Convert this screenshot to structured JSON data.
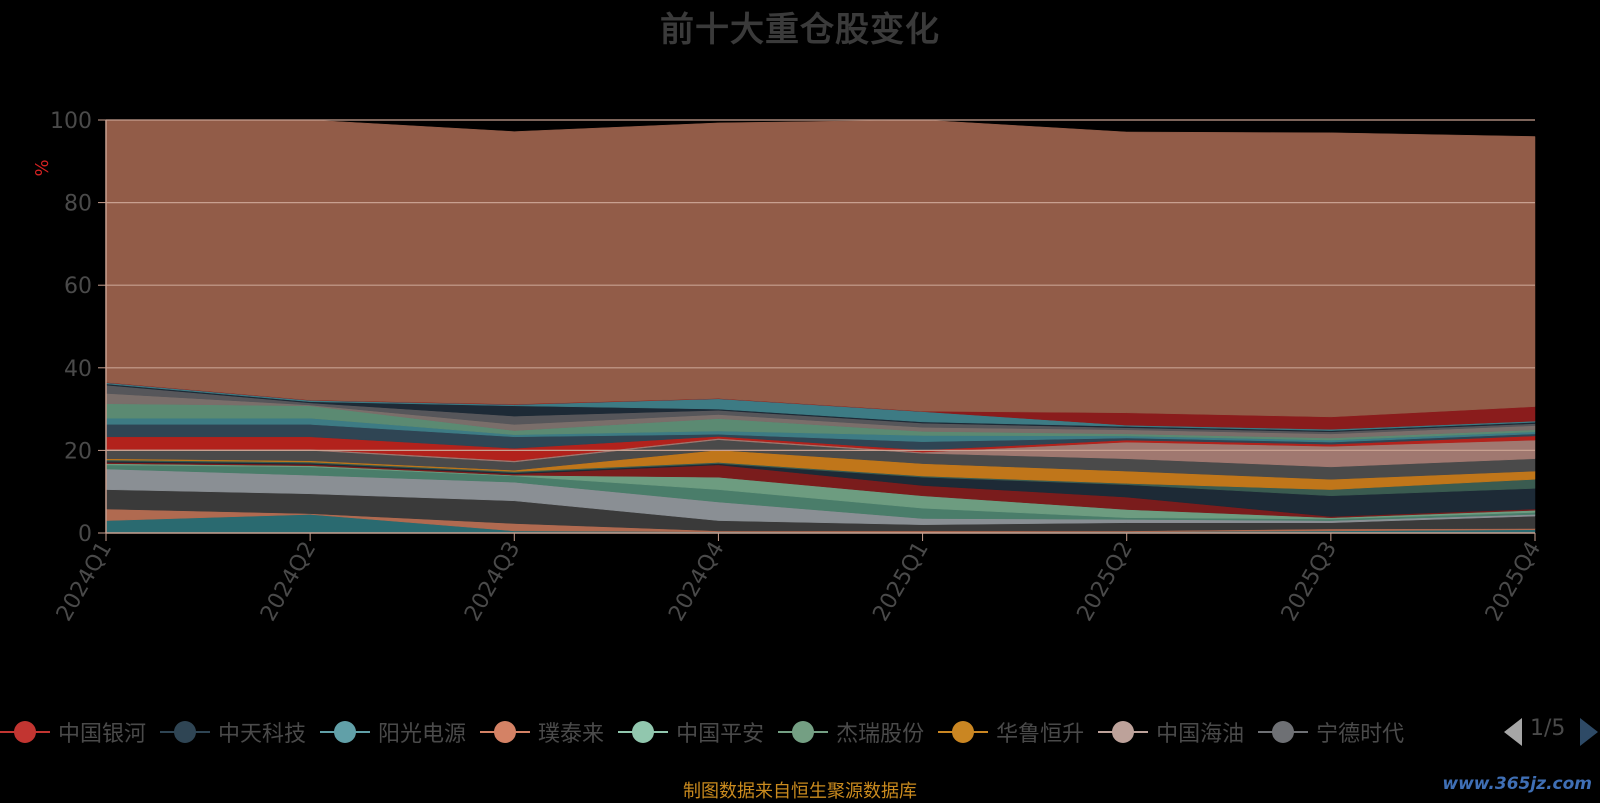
{
  "title": "前十大重仓股变化",
  "source_note": "制图数据来自恒生聚源数据库",
  "watermark": "www.365jz.com",
  "legend_page": "1/5",
  "colors": {
    "background": "#000000",
    "fill_area": "#925c48",
    "axis": "#c8a090",
    "tick_text": "#4a4a4a",
    "ylabel": "#d42222",
    "source_text": "#c98a1e"
  },
  "legend_items": [
    {
      "name": "中国银河",
      "color": "#c23531"
    },
    {
      "name": "中天科技",
      "color": "#2f4554"
    },
    {
      "name": "阳光电源",
      "color": "#61a0a8"
    },
    {
      "name": "璞泰来",
      "color": "#d48265"
    },
    {
      "name": "中国平安",
      "color": "#91c7ae"
    },
    {
      "name": "杰瑞股份",
      "color": "#749f83"
    },
    {
      "name": "华鲁恒升",
      "color": "#ca8622"
    },
    {
      "name": "中国海油",
      "color": "#bda29a"
    },
    {
      "name": "宁德时代",
      "color": "#6e7074"
    }
  ],
  "chart_data": {
    "type": "area",
    "categories": [
      "2024Q1",
      "2024Q2",
      "2024Q3",
      "2024Q4",
      "2025Q1",
      "2025Q2",
      "2025Q3",
      "2025Q4"
    ],
    "ylabel": "%",
    "ylim": [
      0,
      100
    ],
    "yticks": [
      0,
      20,
      40,
      60,
      80,
      100
    ],
    "stacked": true,
    "series": [
      {
        "color": "#2a6a70",
        "values": [
          3.0,
          4.5,
          0.5,
          0.3,
          0.2,
          0.3,
          0.5,
          0.8
        ]
      },
      {
        "color": "#b06a50",
        "values": [
          2.8,
          0.2,
          1.8,
          0.2,
          0.3,
          0.2,
          0.5,
          0.3
        ]
      },
      {
        "color": "#3a3a3a",
        "values": [
          4.7,
          4.8,
          5.5,
          2.5,
          1.5,
          2.0,
          1.5,
          3.0
        ]
      },
      {
        "color": "#8a8f94",
        "values": [
          5.0,
          4.5,
          4.5,
          4.5,
          1.5,
          0.8,
          0.5,
          0.4
        ]
      },
      {
        "color": "#4a7d6a",
        "values": [
          1.0,
          2.0,
          1.5,
          3.0,
          2.5,
          0.4,
          0.4,
          0.5
        ]
      },
      {
        "color": "#6d9c80",
        "values": [
          0.3,
          0.3,
          0.2,
          3.0,
          3.0,
          2.0,
          0.3,
          0.5
        ]
      },
      {
        "color": "#7a1c1c",
        "values": [
          0.3,
          0.3,
          0.3,
          3.0,
          2.5,
          3.0,
          0.3,
          0.3
        ]
      },
      {
        "color": "#1d2a36",
        "values": [
          0.3,
          0.3,
          0.3,
          0.3,
          2.0,
          3.0,
          5.0,
          5.0
        ]
      },
      {
        "color": "#3a5b50",
        "values": [
          0.3,
          0.3,
          0.3,
          0.3,
          0.3,
          0.3,
          1.5,
          2.2
        ]
      },
      {
        "color": "#c0761a",
        "values": [
          0.3,
          0.3,
          0.3,
          3.0,
          3.0,
          3.0,
          2.5,
          2.0
        ]
      },
      {
        "color": "#4a4a4a",
        "values": [
          2.0,
          2.5,
          2.0,
          2.5,
          2.5,
          3.0,
          3.0,
          3.0
        ]
      },
      {
        "color": "#a07870",
        "values": [
          0.3,
          0.3,
          0.3,
          0.3,
          0.3,
          4.0,
          5.0,
          4.5
        ]
      },
      {
        "color": "#b2221c",
        "values": [
          3.0,
          3.0,
          3.0,
          0.5,
          0.5,
          0.5,
          0.5,
          1.0
        ]
      },
      {
        "color": "#2f4554",
        "values": [
          3.0,
          3.0,
          2.8,
          0.5,
          2.0,
          0.5,
          0.5,
          0.5
        ]
      },
      {
        "color": "#3d7b84",
        "values": [
          1.5,
          1.5,
          0.5,
          0.8,
          1.5,
          0.5,
          0.5,
          0.5
        ]
      },
      {
        "color": "#5b8a72",
        "values": [
          3.5,
          3.0,
          1.0,
          3.0,
          1.0,
          0.5,
          0.5,
          0.5
        ]
      },
      {
        "color": "#7a6e6a",
        "values": [
          2.5,
          0.2,
          1.5,
          1.0,
          1.0,
          1.0,
          1.0,
          1.0
        ]
      },
      {
        "color": "#56565a",
        "values": [
          2.0,
          0.5,
          2.0,
          1.0,
          1.0,
          0.5,
          0.5,
          0.5
        ]
      },
      {
        "color": "#1d2a36",
        "values": [
          0.3,
          0.3,
          2.5,
          0.3,
          0.3,
          0.3,
          0.3,
          0.3
        ]
      },
      {
        "color": "#3d7b84",
        "values": [
          0.3,
          0.3,
          0.3,
          2.5,
          2.5,
          0.3,
          0.3,
          0.3
        ]
      },
      {
        "color": "#8a1c1c",
        "values": [
          0.1,
          0.1,
          0.1,
          0.1,
          0.1,
          3.0,
          3.0,
          3.5
        ]
      },
      {
        "color": "#925c48",
        "values": [
          66.5,
          68.0,
          66.0,
          66.7,
          73.0,
          68.0,
          68.8,
          65.4
        ]
      }
    ]
  }
}
